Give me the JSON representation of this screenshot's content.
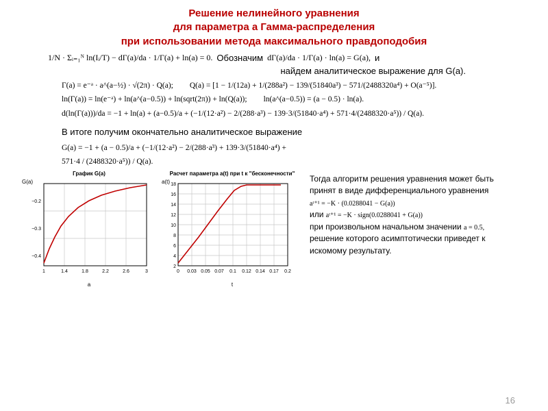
{
  "title_l1": "Решение нелинейного уравнения",
  "title_l2": "для параметра a Гамма-распределения",
  "title_l3": "при использовании метода максимального правдоподобия",
  "eq_main_left": "1/N · Σᵢ₌₁ᴺ ln(Iᵢ/T) − dΓ(a)/da · 1/Γ(a) + ln(a) = 0.",
  "label_oboz": "Обозначим",
  "eq_main_right": "dΓ(a)/da · 1/Γ(a) · ln(a) = G(a),",
  "label_and": "и",
  "line_find": "найдем аналитическое выражение для G(a).",
  "eq_gamma1_l": "Γ(a) = e⁻ᵃ · a^(a−½) · √(2π) · Q(a);",
  "eq_gamma1_r": "Q(a) = [1 − 1/(12a) + 1/(288a²) − 139/(51840a³) − 571/(2488320a⁴) + O(a⁻⁵)].",
  "eq_gamma2_l": "ln(Γ(a)) = ln(e⁻ᵃ) + ln(a^(a−0.5)) + ln(sqrt(2π)) + ln(Q(a));",
  "eq_gamma2_r": "ln(a^(a−0.5)) = (a − 0.5) · ln(a).",
  "eq_gamma3": "d(ln(Γ(a)))/da = −1 + ln(a) + (a−0.5)/a + (−1/(12·a²) − 2/(288·a³) − 139·3/(51840·a⁴) + 571·4/(2488320·a⁵)) / Q(a).",
  "para_final": "В итоге получим окончательно аналитическое выражение",
  "eq_G1": "G(a) = −1 + (a − 0.5)/a + (−1/(12·a²) − 2/(288·a³) + 139·3/(51840·a⁴) +",
  "eq_G2": "571·4 / (2488320·a⁵)) / Q(a).",
  "right_p1": "Тогда алгоритм решения уравнения может быть принят в виде дифференциального уравнения",
  "right_eq1": "aᵗ⁺¹ = −K · (0.0288041 − G(a))",
  "label_or": "или",
  "right_eq2": "aᵗ⁺¹ = −K · sign(0.0288041 + G(a))",
  "right_p2a": "при произвольном начальном значении",
  "right_eq3": "a = 0.5,",
  "right_p2b": "решение которого асимптотически приведет к искомому результату.",
  "page_num": "16",
  "chart1": {
    "title": "График G(a)",
    "ylabel": "G(a)",
    "xlabel": "a",
    "xticks": [
      "1",
      "1.4",
      "1.8",
      "2.2",
      "2.6",
      "3"
    ],
    "yticks": [
      "−0.2",
      "−0.3",
      "−0.4"
    ],
    "curve_pts": [
      [
        0,
        116
      ],
      [
        8,
        95
      ],
      [
        16,
        78
      ],
      [
        25,
        62
      ],
      [
        36,
        48
      ],
      [
        50,
        35
      ],
      [
        66,
        25
      ],
      [
        84,
        17
      ],
      [
        104,
        11
      ],
      [
        126,
        6
      ],
      [
        150,
        2
      ]
    ],
    "grid_color": "#c8c8c8",
    "curve_color": "#c00000",
    "frame_color": "#000000"
  },
  "chart2": {
    "title": "Расчет параметра a(t) при t к \"бесконечности\"",
    "ylabel": "a(t)",
    "xlabel": "t",
    "xticks": [
      "0",
      "0.03",
      "0.05",
      "0.07",
      "0.1",
      "0.12",
      "0.14",
      "0.17",
      "0.2"
    ],
    "yticks": [
      "18",
      "16",
      "14",
      "12",
      "10",
      "8",
      "6",
      "4",
      "2"
    ],
    "curve_pts": [
      [
        0,
        116
      ],
      [
        30,
        78
      ],
      [
        58,
        40
      ],
      [
        72,
        22
      ],
      [
        82,
        10
      ],
      [
        92,
        4
      ],
      [
        100,
        2
      ],
      [
        150,
        2
      ]
    ],
    "grid_color": "#c8c8c8",
    "curve_color": "#c00000",
    "frame_color": "#000000"
  }
}
